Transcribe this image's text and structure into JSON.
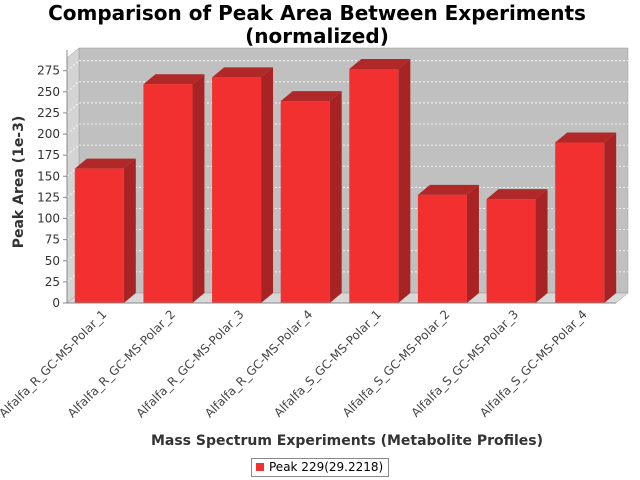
{
  "chart_data": {
    "type": "bar",
    "title_lines": [
      "Comparison of Peak Area Between Experiments",
      "(normalized)"
    ],
    "xlabel": "Mass Spectrum Experiments (Metabolite Profiles)",
    "ylabel": "Peak Area (1e-3)",
    "ylim": [
      0,
      290
    ],
    "yticks": [
      0,
      25,
      50,
      75,
      100,
      125,
      150,
      175,
      200,
      225,
      250,
      275
    ],
    "grid": true,
    "legend_position": "bottom",
    "categories": [
      "Alfalfa_R_GC-MS-Polar_1",
      "Alfalfa_R_GC-MS-Polar_2",
      "Alfalfa_R_GC-MS-Polar_3",
      "Alfalfa_R_GC-MS-Polar_4",
      "Alfalfa_S_GC-MS-Polar_1",
      "Alfalfa_S_GC-MS-Polar_2",
      "Alfalfa_S_GC-MS-Polar_3",
      "Alfalfa_S_GC-MS-Polar_4"
    ],
    "series": [
      {
        "name": "Peak 229(29.2218)",
        "color": "#f23030",
        "values": [
          159,
          259,
          267,
          239,
          277,
          128,
          123,
          190
        ]
      }
    ]
  }
}
